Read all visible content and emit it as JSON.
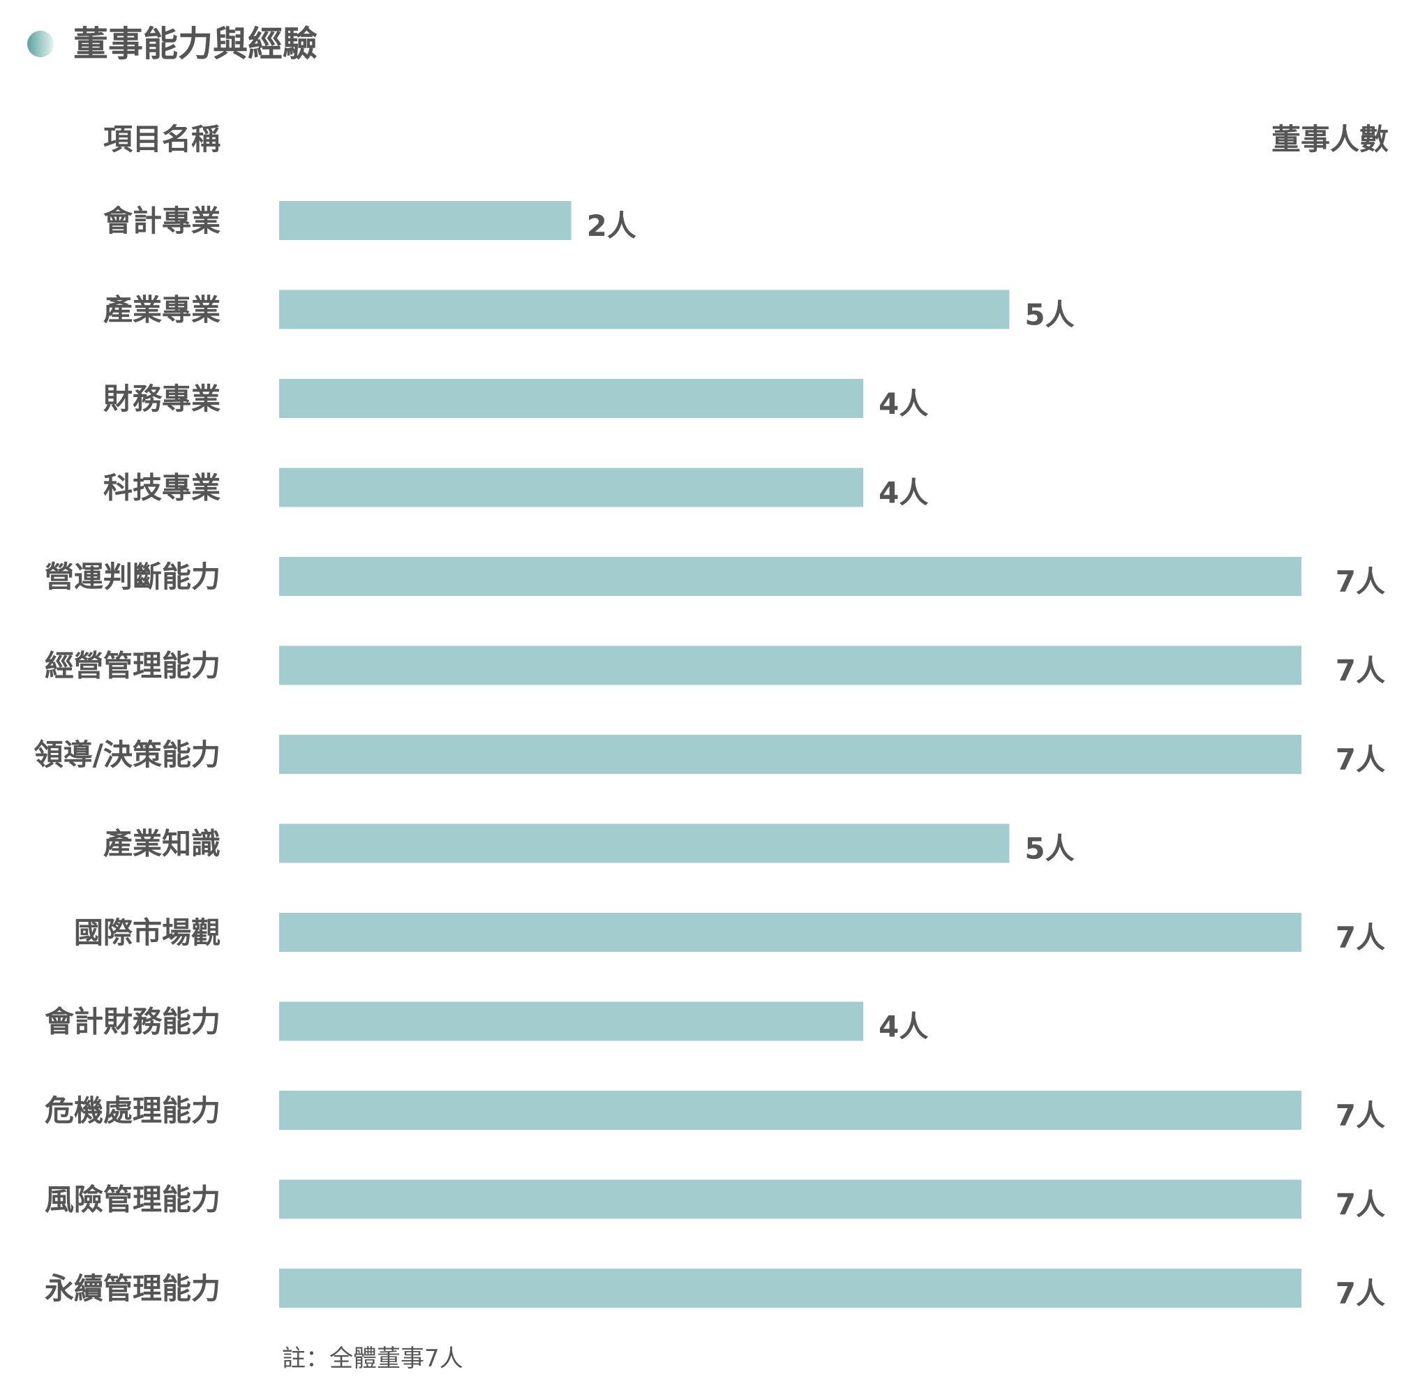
{
  "title": "董事能力與經驗",
  "colors": {
    "bar": "#a3cccf",
    "text": "#555555",
    "dot_start": "#5aa39f",
    "dot_end": "#e6f2f1"
  },
  "chart_data": {
    "type": "bar",
    "orientation": "horizontal",
    "category_header": "項目名稱",
    "value_header": "董事人數",
    "categories": [
      "會計專業",
      "產業專業",
      "財務專業",
      "科技專業",
      "營運判斷能力",
      "經營管理能力",
      "領導/決策能力",
      "產業知識",
      "國際市場觀",
      "會計財務能力",
      "危機處理能力",
      "風險管理能力",
      "永續管理能力"
    ],
    "values": [
      2,
      5,
      4,
      4,
      7,
      7,
      7,
      5,
      7,
      4,
      7,
      7,
      7
    ],
    "value_labels": [
      "2人",
      "5人",
      "4人",
      "4人",
      "7人",
      "7人",
      "7人",
      "5人",
      "7人",
      "4人",
      "7人",
      "7人",
      "7人"
    ],
    "xlim": [
      0,
      7
    ],
    "grid": false,
    "legend": "none"
  },
  "note": "註：全體董事7人"
}
